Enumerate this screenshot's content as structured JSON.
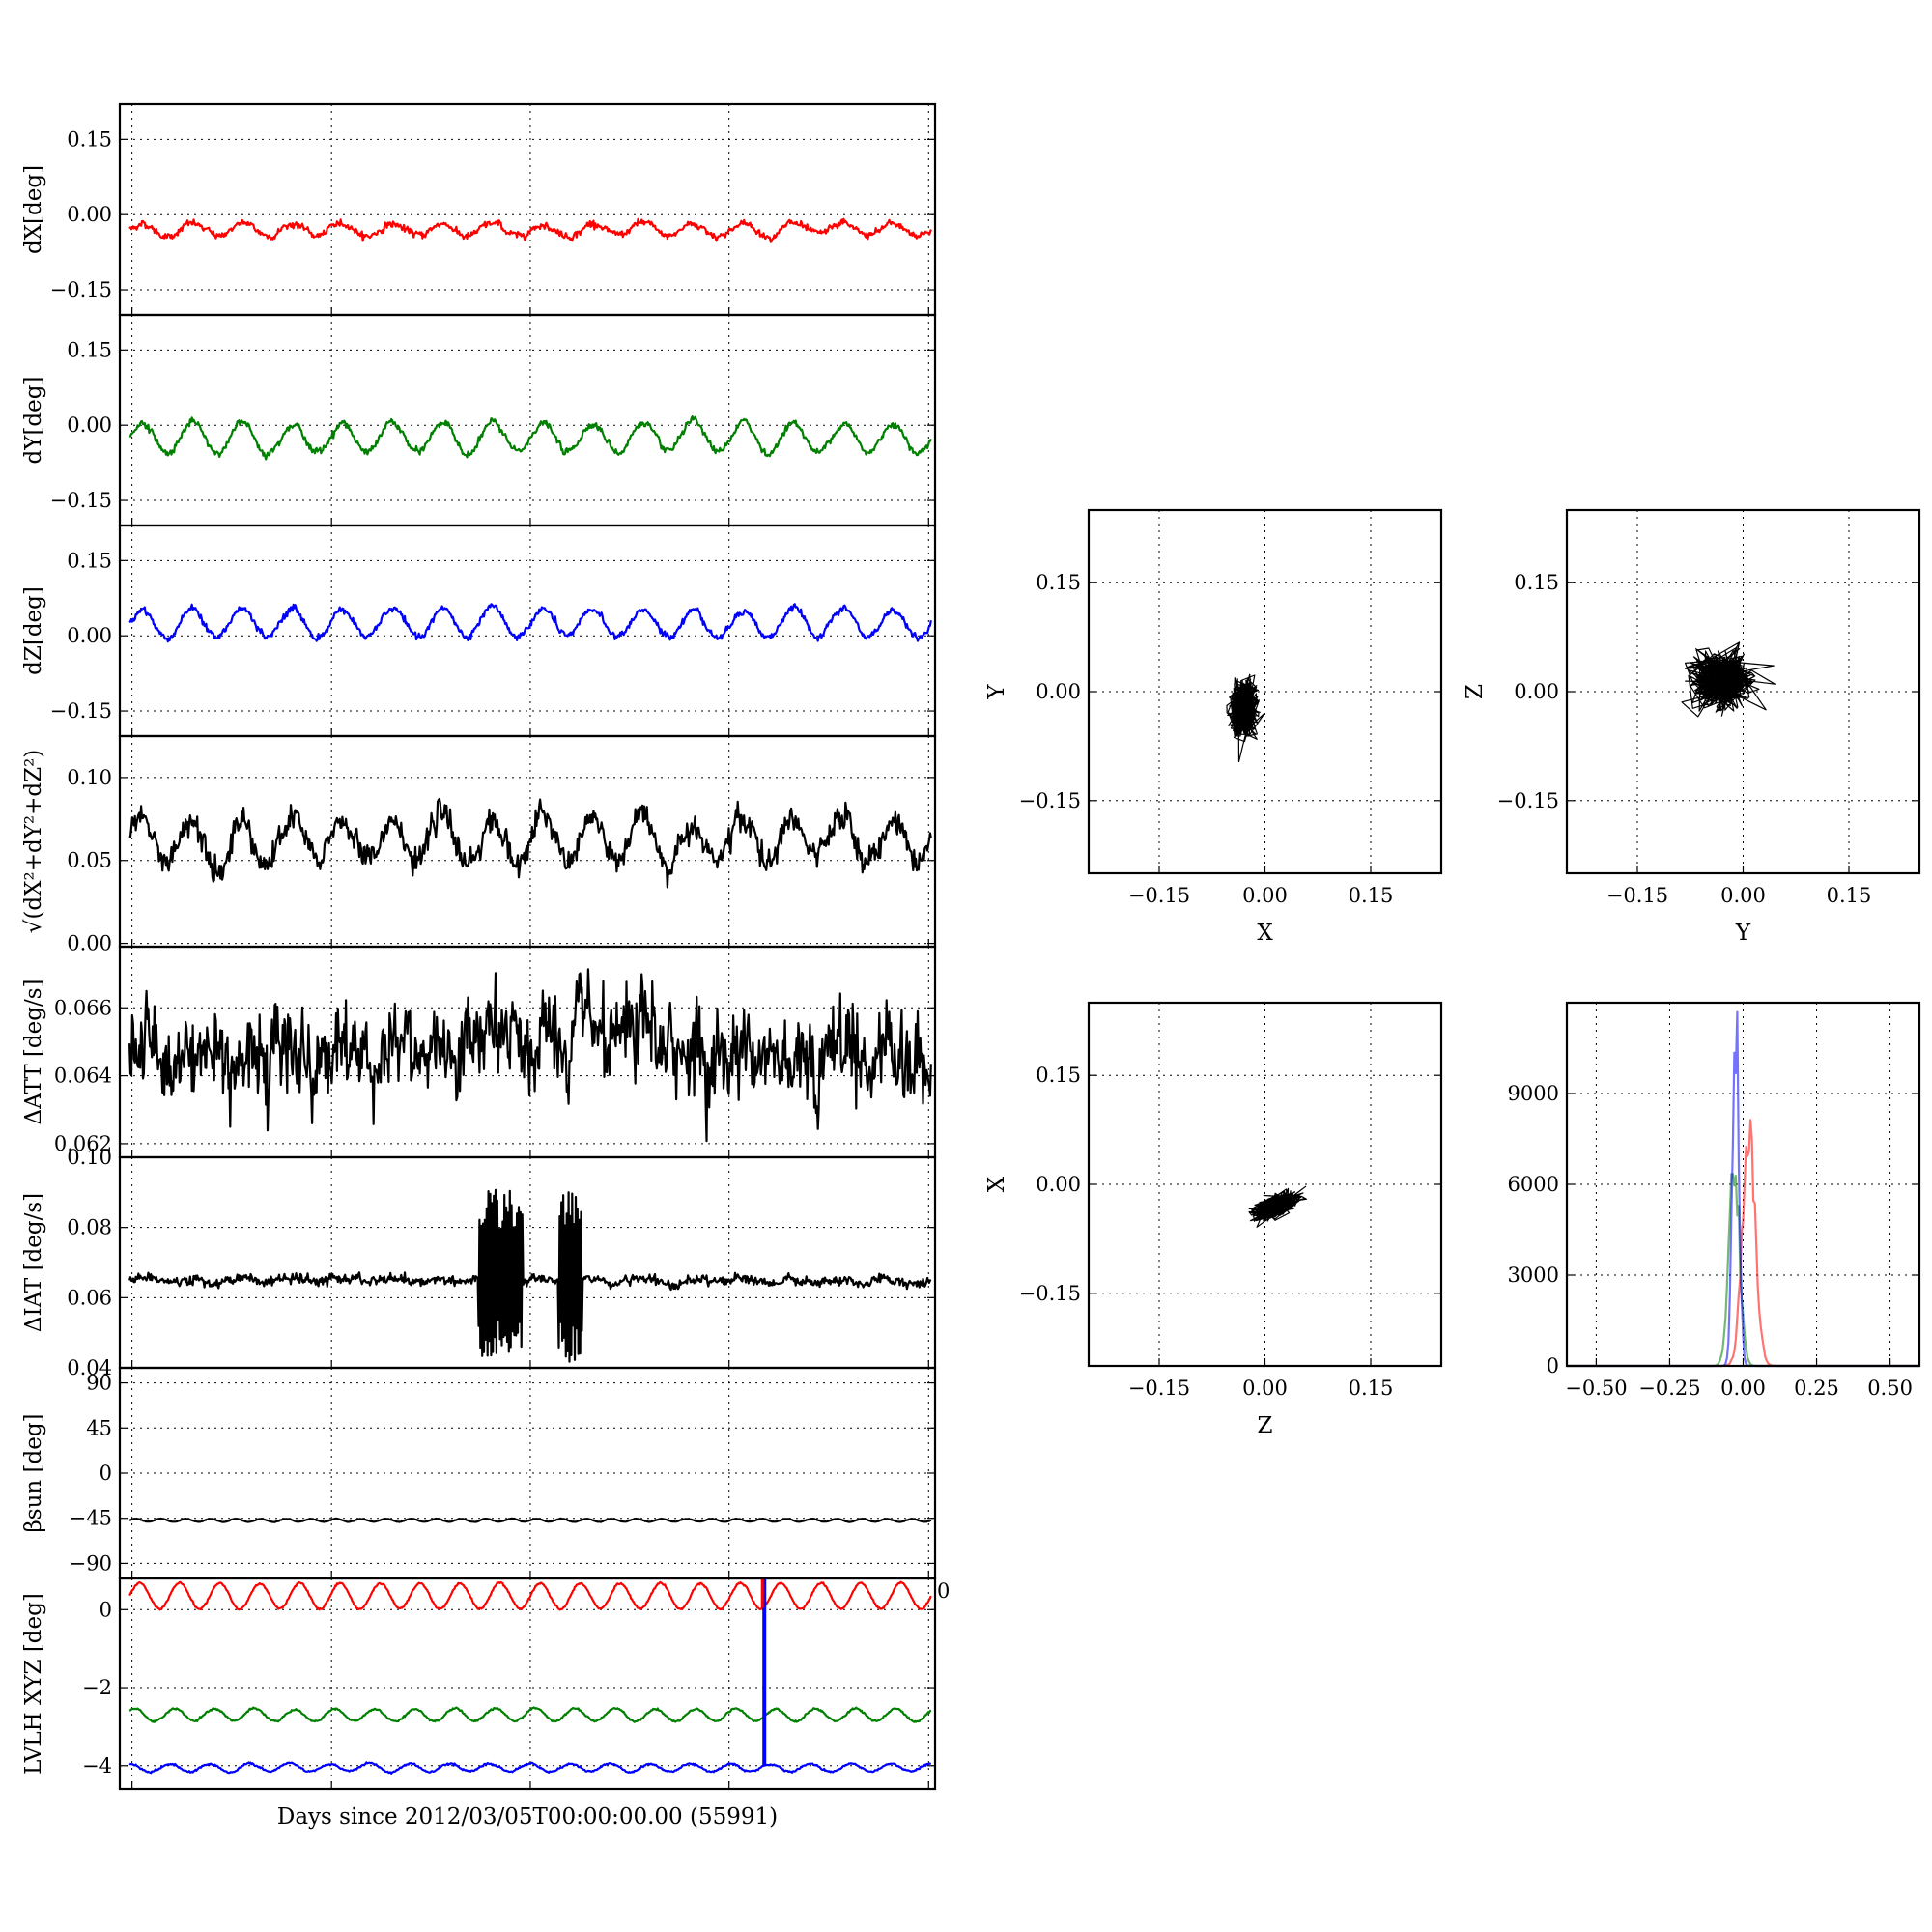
{
  "figure": {
    "xlabel": "Days since 2012/03/05T00:00:00.00 (55991)"
  },
  "chart_data": [
    {
      "id": "dX",
      "type": "line",
      "ylabel": "dX[deg]",
      "ylim": [
        -0.2,
        0.22
      ],
      "yticks": [
        "0.15",
        "0.00",
        "−0.15"
      ],
      "ytick_values": [
        0.15,
        0.0,
        -0.15
      ],
      "series": [
        {
          "color": "#ff0000",
          "baseline": -0.03,
          "amplitude": 0.012,
          "noise": 0.006,
          "cycles": 16
        }
      ]
    },
    {
      "id": "dY",
      "type": "line",
      "ylabel": "dY[deg]",
      "ylim": [
        -0.2,
        0.22
      ],
      "yticks": [
        "0.15",
        "0.00",
        "−0.15"
      ],
      "ytick_values": [
        0.15,
        0.0,
        -0.15
      ],
      "series": [
        {
          "color": "#008000",
          "baseline": -0.025,
          "amplitude": 0.03,
          "noise": 0.006,
          "cycles": 16
        }
      ]
    },
    {
      "id": "dZ",
      "type": "line",
      "ylabel": "dZ[deg]",
      "ylim": [
        -0.2,
        0.22
      ],
      "yticks": [
        "0.15",
        "0.00",
        "−0.15"
      ],
      "ytick_values": [
        0.15,
        0.0,
        -0.15
      ],
      "series": [
        {
          "color": "#0000ff",
          "baseline": 0.025,
          "amplitude": 0.028,
          "noise": 0.006,
          "cycles": 16
        }
      ]
    },
    {
      "id": "norm",
      "type": "line",
      "ylabel": "√(dX²+dY²+dZ²)",
      "ylim": [
        -0.002,
        0.125
      ],
      "yticks": [
        "0.10",
        "0.05",
        "0.00"
      ],
      "ytick_values": [
        0.1,
        0.05,
        0.0
      ],
      "series": [
        {
          "color": "#000000",
          "baseline": 0.062,
          "amplitude": 0.013,
          "noise": 0.007,
          "cycles": 16
        }
      ]
    },
    {
      "id": "datt",
      "type": "line",
      "ylabel": "ΔATT [deg/s]",
      "ylim": [
        0.0616,
        0.0678
      ],
      "yticks": [
        "0.066",
        "0.064",
        "0.062"
      ],
      "ytick_values": [
        0.066,
        0.064,
        0.062
      ],
      "series": [
        {
          "color": "#000000",
          "baseline": 0.0648,
          "amplitude": 0.0003,
          "noise": 0.0011,
          "cycles": 16
        }
      ]
    },
    {
      "id": "diat",
      "type": "line",
      "ylabel": "ΔIAT [deg/s]",
      "ylim": [
        0.04,
        0.1
      ],
      "yticks": [
        "0.10",
        "0.08",
        "0.06",
        "0.04"
      ],
      "ytick_values": [
        0.1,
        0.08,
        0.06,
        0.04
      ],
      "series": [
        {
          "color": "#000000",
          "baseline": 0.065,
          "amplitude": 0.0005,
          "noise": 0.0012,
          "cycles": 16,
          "bursts": [
            {
              "from": 0.435,
              "to": 0.49,
              "low": 0.042,
              "high": 0.091
            },
            {
              "from": 0.535,
              "to": 0.565,
              "low": 0.041,
              "high": 0.091
            }
          ]
        }
      ]
    },
    {
      "id": "beta",
      "type": "line",
      "ylabel": "βsun [deg]",
      "ylim": [
        -105,
        105
      ],
      "yticks": [
        "90",
        "45",
        "0",
        "−45",
        "−90"
      ],
      "ytick_values": [
        90,
        45,
        0,
        -45,
        -90
      ],
      "series": [
        {
          "color": "#000000",
          "baseline": -47,
          "amplitude": 1.5,
          "noise": 0.2,
          "cycles": 32
        }
      ]
    },
    {
      "id": "lvlh",
      "type": "line",
      "ylabel": "LVLH XYZ [deg]",
      "ylim": [
        -4.6,
        0.8
      ],
      "yticks": [
        "0",
        "−2",
        "−4"
      ],
      "ytick_values": [
        0,
        -2,
        -4
      ],
      "corner_label": "0",
      "series": [
        {
          "color": "#ff0000",
          "baseline": 0.35,
          "amplitude": 0.33,
          "noise": 0.02,
          "cycles": 20
        },
        {
          "color": "#008000",
          "baseline": -2.7,
          "amplitude": 0.16,
          "noise": 0.02,
          "cycles": 20
        },
        {
          "color": "#0000ff",
          "baseline": -4.05,
          "amplitude": 0.1,
          "noise": 0.02,
          "cycles": 20
        }
      ],
      "spike": {
        "x": 0.792,
        "from": 0.8,
        "to": -4.0
      }
    },
    {
      "id": "xy",
      "type": "scatter",
      "xlabel": "X",
      "ylabel": "Y",
      "xlim": [
        -0.25,
        0.25
      ],
      "ylim": [
        -0.25,
        0.25
      ],
      "xticks": [
        "−0.15",
        "0.00",
        "0.15"
      ],
      "xtick_values": [
        -0.15,
        0.0,
        0.15
      ],
      "yticks": [
        "0.15",
        "0.00",
        "−0.15"
      ],
      "ytick_values": [
        0.15,
        0.0,
        -0.15
      ],
      "cloud": {
        "cx": -0.03,
        "cy": -0.025,
        "rx": 0.026,
        "ry": 0.052,
        "color": "#000000"
      }
    },
    {
      "id": "yz",
      "type": "scatter",
      "xlabel": "Y",
      "ylabel": "Z",
      "xlim": [
        -0.25,
        0.25
      ],
      "ylim": [
        -0.25,
        0.25
      ],
      "xticks": [
        "−0.15",
        "0.00",
        "0.15"
      ],
      "xtick_values": [
        -0.15,
        0.0,
        0.15
      ],
      "yticks": [
        "0.15",
        "0.00",
        "−0.15"
      ],
      "ytick_values": [
        0.15,
        0.0,
        -0.15
      ],
      "cloud": {
        "cx": -0.03,
        "cy": 0.015,
        "rx": 0.06,
        "ry": 0.05,
        "color": "#000000"
      }
    },
    {
      "id": "zx",
      "type": "scatter",
      "xlabel": "Z",
      "ylabel": "X",
      "xlim": [
        -0.25,
        0.25
      ],
      "ylim": [
        -0.25,
        0.25
      ],
      "xticks": [
        "−0.15",
        "0.00",
        "0.15"
      ],
      "xtick_values": [
        -0.15,
        0.0,
        0.15
      ],
      "yticks": [
        "0.15",
        "0.00",
        "−0.15"
      ],
      "ytick_values": [
        0.15,
        0.0,
        -0.15
      ],
      "cloud": {
        "cx": 0.015,
        "cy": -0.03,
        "rx": 0.045,
        "ry": 0.018,
        "color": "#000000",
        "tilt": 0.45
      }
    },
    {
      "id": "hist",
      "type": "line",
      "xlim": [
        -0.6,
        0.6
      ],
      "ylim": [
        0,
        12000
      ],
      "xticks": [
        "−0.50",
        "−0.25",
        "0.00",
        "0.25",
        "0.50"
      ],
      "xtick_values": [
        -0.5,
        -0.25,
        0,
        0.25,
        0.5
      ],
      "yticks": [
        "9000",
        "6000",
        "3000",
        "0"
      ],
      "ytick_values": [
        9000,
        6000,
        3000,
        0
      ],
      "series": [
        {
          "color": "#ff0000",
          "opacity": 0.55,
          "center": 0.02,
          "sigma": 0.022,
          "peak": 7400
        },
        {
          "color": "#008000",
          "opacity": 0.55,
          "center": -0.03,
          "sigma": 0.018,
          "peak": 6700
        },
        {
          "color": "#0000ff",
          "opacity": 0.55,
          "center": -0.025,
          "sigma": 0.011,
          "peak": 11300
        }
      ]
    }
  ]
}
